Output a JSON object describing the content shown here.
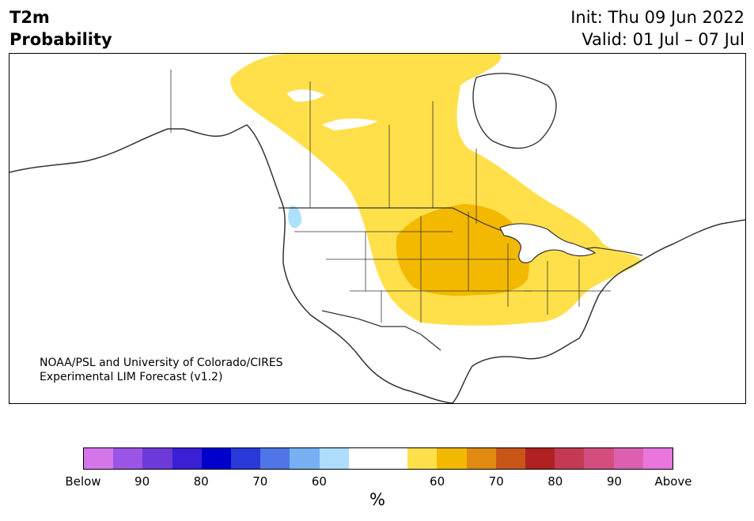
{
  "title": {
    "left_line1": "T2m",
    "left_line2": "Probability",
    "right_line1": "Init: Thu 09 Jun 2022",
    "right_line2": "Valid: 01 Jul – 07 Jul"
  },
  "credit": {
    "line1": "NOAA/PSL and University of Colorado/CIRES",
    "line2": "Experimental LIM Forecast (v1.2)"
  },
  "colors": {
    "land_outline": "#333333",
    "above_60": "#ffe04a",
    "above_65": "#f3b800",
    "below_60": "#aee0ff",
    "lake_fill": "#ffffff"
  },
  "colorbar": {
    "colors": [
      "#d476ea",
      "#9a55e6",
      "#6c3ad9",
      "#3a1fd4",
      "#0000cc",
      "#2a3ad8",
      "#5075e6",
      "#76b0f3",
      "#aedcfd",
      "#ffffff",
      "#ffffff",
      "#ffe04a",
      "#f3b800",
      "#e08a10",
      "#c85618",
      "#b02222",
      "#c43a54",
      "#d24e7e",
      "#dc5fb0",
      "#e876dd"
    ],
    "labels": [
      "Below",
      "90",
      "80",
      "70",
      "60",
      "60",
      "70",
      "80",
      "90",
      "Above"
    ],
    "unit": "%"
  }
}
